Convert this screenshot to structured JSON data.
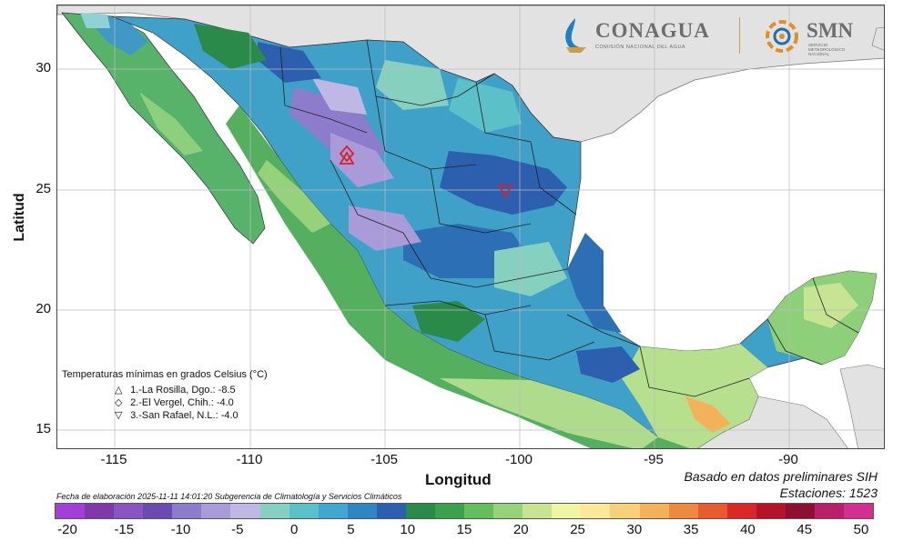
{
  "axes": {
    "y_title": "Latitud",
    "x_title": "Longitud",
    "y_ticks": [
      "30",
      "25",
      "20",
      "15"
    ],
    "x_ticks": [
      "-115",
      "-110",
      "-105",
      "-100",
      "-95",
      "-90"
    ]
  },
  "logos": {
    "conagua": "CONAGUA",
    "conagua_sub": "COMISIÓN NACIONAL DEL AGUA",
    "smn": "SMN",
    "smn_sub": "SERVICIO METEOROLÓGICO NACIONAL"
  },
  "legend": {
    "title": "Temperaturas mínimas en grados Celsius (°C)",
    "items": [
      {
        "symbol": "△",
        "text": "1.-La Rosilla, Dgo.: -8.5"
      },
      {
        "symbol": "◇",
        "text": "2.-El Vergel, Chih.: -4.0"
      },
      {
        "symbol": "▽",
        "text": "3.-San Rafael, N.L.: -4.0"
      }
    ]
  },
  "footer": {
    "basis": "Basado en datos preliminares SIH",
    "stations": "Estaciones:  1523",
    "elaboration": "Fecha de elaboración 2025-11-11 14:01:20 Subgerencia de Climatología y Servicios Climáticos"
  },
  "colorbar": {
    "labels": [
      "-20",
      "-15",
      "-10",
      "-5",
      "0",
      "5",
      "10",
      "15",
      "20",
      "25",
      "30",
      "35",
      "40",
      "45",
      "50"
    ],
    "colors": [
      "#a23fd6",
      "#7d3aa8",
      "#8a55c0",
      "#6a4cb0",
      "#8d7ccc",
      "#a99ad8",
      "#c0b8e4",
      "#86d0c0",
      "#5cc0c8",
      "#40a8d0",
      "#2f86c0",
      "#2c5fae",
      "#2a8a4a",
      "#3aa24e",
      "#66bd5e",
      "#95d27a",
      "#c6e494",
      "#eef5a4",
      "#fbe99a",
      "#f8d07a",
      "#f3b25a",
      "#ee8a40",
      "#e85a30",
      "#d82828",
      "#b4142a",
      "#8c1030",
      "#b8206a",
      "#d42e90"
    ]
  },
  "markers": [
    {
      "name": "La Rosilla",
      "symbol": "triangle-up",
      "lon": -106.4,
      "lat": 26.4
    },
    {
      "name": "El Vergel",
      "symbol": "diamond",
      "lon": -106.4,
      "lat": 26.6
    },
    {
      "name": "San Rafael",
      "symbol": "triangle-down",
      "lon": -100.5,
      "lat": 25.1
    }
  ]
}
